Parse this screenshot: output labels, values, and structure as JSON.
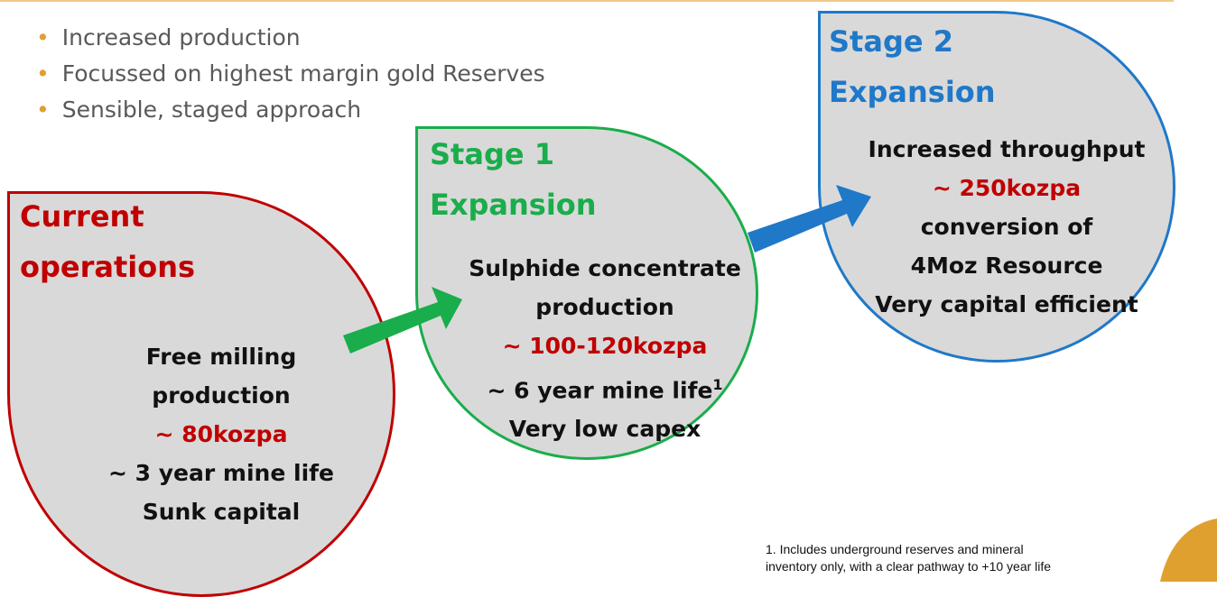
{
  "bullets": [
    "Increased production",
    "Focussed on highest margin gold Reserves",
    "Sensible, staged approach"
  ],
  "stages": [
    {
      "title_lines": [
        "Current",
        "operations"
      ],
      "lines": [
        "Free milling",
        "production",
        "~ 80kozpa",
        "~ 3 year mine life",
        "Sunk capital"
      ]
    },
    {
      "title_lines": [
        "Stage 1",
        "Expansion"
      ],
      "lines": [
        "Sulphide concentrate",
        "production",
        "~ 100-120kozpa",
        "~ 6 year mine life",
        "Very low capex"
      ],
      "footnote_mark": "1"
    },
    {
      "title_lines": [
        "Stage 2",
        "Expansion"
      ],
      "lines": [
        "Increased throughput",
        "~ 250kozpa",
        "conversion of",
        "4Moz Resource",
        "Very capital efficient"
      ]
    }
  ],
  "footnote": {
    "lines": [
      "1. Includes underground reserves and mineral",
      "inventory only, with a clear pathway to +10 year life"
    ]
  }
}
